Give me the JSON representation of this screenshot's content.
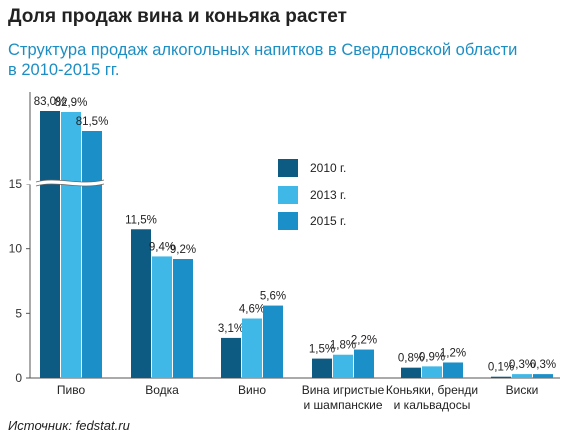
{
  "header": {
    "title": "Доля продаж вина и коньяка растет",
    "subtitle_line1": "Структура продаж алкогольных напитков в Свердловской области",
    "subtitle_line2": "в 2010-2015 гг."
  },
  "footer": {
    "source": "Источник: fedstat.ru"
  },
  "colors": {
    "2010": "#0d5a82",
    "2013": "#3fb8e8",
    "2015": "#1a8fc8",
    "axis": "#555555"
  },
  "chart_data": {
    "type": "bar",
    "title": "Структура продаж алкогольных напитков в Свердловской области в 2010-2015 гг.",
    "ylabel": "",
    "xlabel": "",
    "ylim": [
      0,
      15
    ],
    "axis_break": true,
    "yticks": [
      "0",
      "5",
      "10",
      "15"
    ],
    "categories": [
      [
        "Пиво"
      ],
      [
        "Водка"
      ],
      [
        "Вино"
      ],
      [
        "Вина игристые",
        "и шампанские"
      ],
      [
        "Коньяки, бренди",
        "и кальвадосы"
      ],
      [
        "Виски"
      ]
    ],
    "series": [
      {
        "name": "2010 г.",
        "values": [
          83.0,
          11.5,
          3.1,
          1.5,
          0.8,
          0.1
        ],
        "labels": [
          "83,0%",
          "11,5%",
          "3,1%",
          "1,5%",
          "0,8%",
          "0,1%"
        ]
      },
      {
        "name": "2013 г.",
        "values": [
          82.9,
          9.4,
          4.6,
          1.8,
          0.9,
          0.3
        ],
        "labels": [
          "82,9%",
          "9,4%",
          "4,6%",
          "1,8%",
          "0,9%",
          "0,3%"
        ]
      },
      {
        "name": "2015 г.",
        "values": [
          81.5,
          9.2,
          5.6,
          2.2,
          1.2,
          0.3
        ],
        "labels": [
          "81,5%",
          "9,2%",
          "5,6%",
          "2,2%",
          "1,2%",
          "0,3%"
        ]
      }
    ],
    "legend": [
      "2010 г.",
      "2013 г.",
      "2015 г."
    ],
    "grid": false,
    "legend_position": "top-right"
  }
}
